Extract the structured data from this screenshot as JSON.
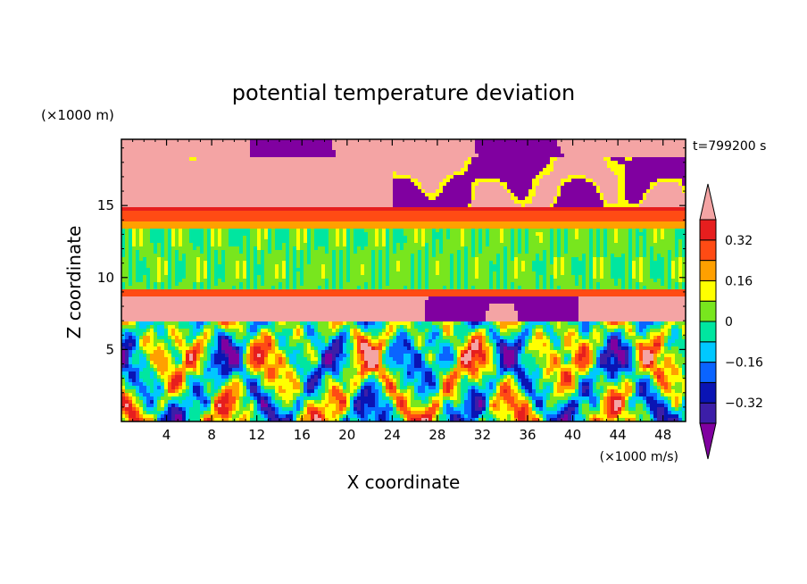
{
  "chart_data": {
    "type": "heatmap",
    "title": "potential temperature deviation",
    "xlabel": "X coordinate",
    "ylabel": "Z coordinate",
    "x_unit": "(×1000 m/s)",
    "y_unit": "(×1000 m)",
    "time_label": "t=799200 s",
    "xlim": [
      0,
      50
    ],
    "ylim": [
      0,
      19.6
    ],
    "x_ticks": [
      4,
      8,
      12,
      16,
      20,
      24,
      28,
      32,
      36,
      40,
      44,
      48
    ],
    "y_ticks": [
      5,
      10,
      15
    ],
    "colorbar": {
      "levels": [
        -0.4,
        -0.32,
        -0.24,
        -0.16,
        -0.08,
        0,
        0.08,
        0.16,
        0.24,
        0.32,
        0.4
      ],
      "tick_labels": [
        "0.32",
        "0.16",
        "0",
        "−0.16",
        "−0.32"
      ],
      "tick_values": [
        0.32,
        0.16,
        0,
        -0.16,
        -0.32
      ],
      "colors": [
        "#8000a0",
        "#3c1ea8",
        "#0a14b4",
        "#0a64ff",
        "#00c8ff",
        "#00e6a0",
        "#78e61e",
        "#ffff00",
        "#ffa000",
        "#ff4b14",
        "#e61e1e",
        "#f4a4a4"
      ],
      "extend": "both"
    },
    "field_summary": [
      {
        "z_range": [
          18.0,
          19.6
        ],
        "description": "mixed -0.4 and 0.4 patches"
      },
      {
        "z_range": [
          15.5,
          18.0
        ],
        "description": "mostly above 0.4 with -0.4 patches on right"
      },
      {
        "z_range": [
          13.5,
          14.8
        ],
        "description": "0.24 to 0.4 band"
      },
      {
        "z_range": [
          9.0,
          13.5
        ],
        "description": "0 to 0.08 band"
      },
      {
        "z_range": [
          8.6,
          9.0
        ],
        "description": "thin 0.24 band"
      },
      {
        "z_range": [
          7.0,
          8.6
        ],
        "description": "mixed, above 0.4 on left, below -0.4 on right"
      },
      {
        "z_range": [
          0,
          7.0
        ],
        "description": "turbulent mixed eddies, -0.4 to 0.4"
      }
    ]
  }
}
